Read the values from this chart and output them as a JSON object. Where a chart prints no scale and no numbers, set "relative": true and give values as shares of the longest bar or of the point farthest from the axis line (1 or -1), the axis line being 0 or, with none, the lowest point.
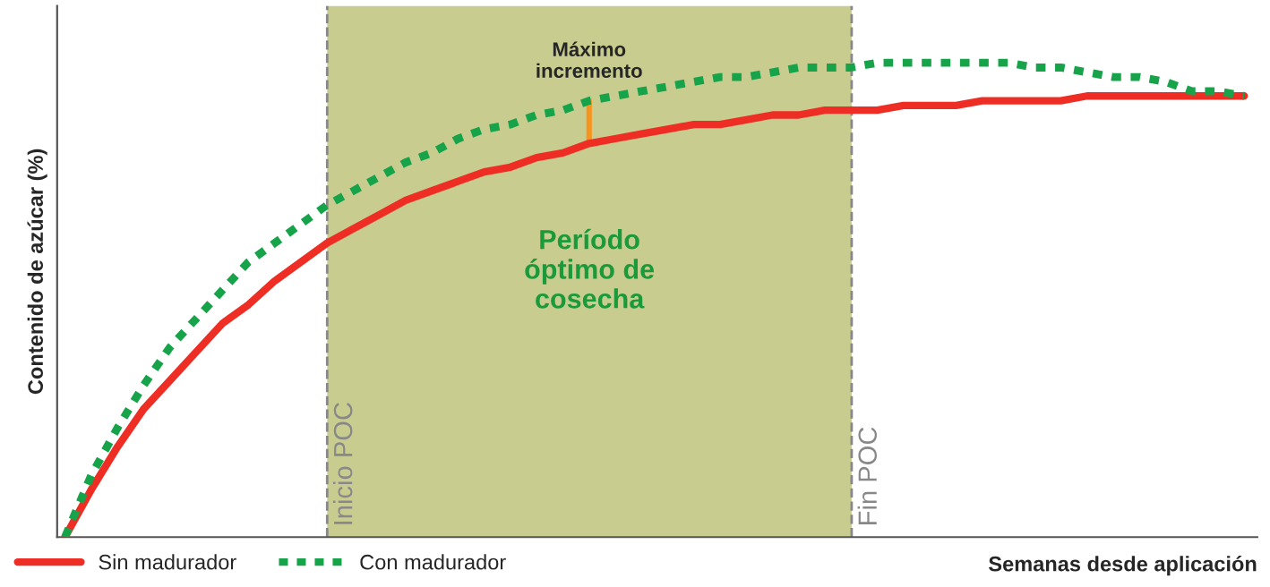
{
  "chart_data": {
    "type": "line",
    "relative": true,
    "xlabel": "Semanas desde aplicación",
    "ylabel": "Contenido de azúcar (%)",
    "categories": [
      null,
      null,
      null,
      null,
      null,
      null,
      null,
      null,
      null,
      null,
      null,
      null,
      null,
      null,
      null,
      null,
      null,
      null,
      null,
      null,
      null,
      null,
      null,
      null,
      null,
      null,
      null,
      null,
      null,
      null,
      null,
      null,
      null,
      null,
      null,
      null,
      null,
      null,
      null,
      null,
      null,
      null,
      null,
      null,
      null,
      null
    ],
    "series": [
      {
        "name": "Sin madurador",
        "color": "#ee2e24",
        "line_style": "solid",
        "values": [
          0,
          0.1,
          0.19,
          0.27,
          0.33,
          0.39,
          0.45,
          0.49,
          0.54,
          0.58,
          0.62,
          0.65,
          0.68,
          0.71,
          0.73,
          0.75,
          0.77,
          0.78,
          0.8,
          0.81,
          0.83,
          0.84,
          0.85,
          0.86,
          0.87,
          0.87,
          0.88,
          0.89,
          0.89,
          0.9,
          0.9,
          0.9,
          0.91,
          0.91,
          0.91,
          0.92,
          0.92,
          0.92,
          0.92,
          0.93,
          0.93,
          0.93,
          0.93,
          0.93,
          0.93,
          0.93
        ]
      },
      {
        "name": "Con madurador",
        "color": "#16a34a",
        "line_style": "dotted",
        "values": [
          0,
          0.13,
          0.23,
          0.32,
          0.4,
          0.46,
          0.52,
          0.58,
          0.62,
          0.66,
          0.7,
          0.73,
          0.76,
          0.79,
          0.81,
          0.84,
          0.86,
          0.87,
          0.89,
          0.9,
          0.92,
          0.93,
          0.94,
          0.95,
          0.96,
          0.97,
          0.97,
          0.98,
          0.99,
          0.99,
          0.99,
          1,
          1,
          1,
          1,
          1,
          1,
          0.99,
          0.99,
          0.98,
          0.97,
          0.97,
          0.96,
          0.94,
          0.94,
          0.93
        ]
      }
    ],
    "annotations": [
      "Máximo\nincremento",
      "Período\nóptimo de\ncosecha",
      "Inicio POC",
      "Fin POC"
    ],
    "marker": "none",
    "legend": "bottom left"
  }
}
